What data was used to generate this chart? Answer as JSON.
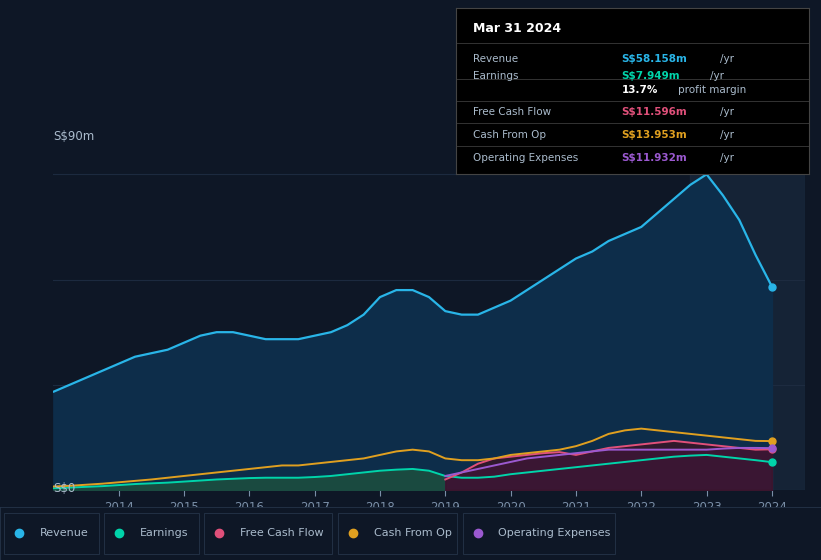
{
  "bg_color": "#0e1726",
  "plot_bg_color": "#0e1726",
  "ylabel": "S$90m",
  "y0label": "S$0",
  "years": [
    2013.0,
    2013.25,
    2013.5,
    2013.75,
    2014.0,
    2014.25,
    2014.5,
    2014.75,
    2015.0,
    2015.25,
    2015.5,
    2015.75,
    2016.0,
    2016.25,
    2016.5,
    2016.75,
    2017.0,
    2017.25,
    2017.5,
    2017.75,
    2018.0,
    2018.25,
    2018.5,
    2018.75,
    2019.0,
    2019.25,
    2019.5,
    2019.75,
    2020.0,
    2020.25,
    2020.5,
    2020.75,
    2021.0,
    2021.25,
    2021.5,
    2021.75,
    2022.0,
    2022.25,
    2022.5,
    2022.75,
    2023.0,
    2023.25,
    2023.5,
    2023.75,
    2024.0
  ],
  "revenue": [
    28,
    30,
    32,
    34,
    36,
    38,
    39,
    40,
    42,
    44,
    45,
    45,
    44,
    43,
    43,
    43,
    44,
    45,
    47,
    50,
    55,
    57,
    57,
    55,
    51,
    50,
    50,
    52,
    54,
    57,
    60,
    63,
    66,
    68,
    71,
    73,
    75,
    79,
    83,
    87,
    90,
    84,
    77,
    67,
    58
  ],
  "earnings": [
    0.5,
    0.7,
    0.9,
    1.1,
    1.4,
    1.7,
    1.9,
    2.1,
    2.4,
    2.7,
    3.0,
    3.2,
    3.4,
    3.5,
    3.5,
    3.5,
    3.7,
    4.0,
    4.5,
    5.0,
    5.5,
    5.8,
    6.0,
    5.5,
    4.0,
    3.5,
    3.5,
    3.8,
    4.5,
    5.0,
    5.5,
    6.0,
    6.5,
    7.0,
    7.5,
    8.0,
    8.5,
    9.0,
    9.5,
    9.8,
    10.0,
    9.5,
    9.0,
    8.5,
    7.949
  ],
  "free_cash_flow": [
    null,
    null,
    null,
    null,
    null,
    null,
    null,
    null,
    null,
    null,
    null,
    null,
    null,
    null,
    null,
    null,
    null,
    null,
    null,
    null,
    null,
    null,
    null,
    null,
    3.0,
    5.0,
    7.5,
    9.0,
    9.5,
    10.0,
    10.5,
    10.8,
    10.0,
    11.0,
    12.0,
    12.5,
    13.0,
    13.5,
    14.0,
    13.5,
    13.0,
    12.5,
    12.0,
    11.5,
    11.596
  ],
  "cash_from_op": [
    1.0,
    1.2,
    1.5,
    1.8,
    2.2,
    2.6,
    3.0,
    3.5,
    4.0,
    4.5,
    5.0,
    5.5,
    6.0,
    6.5,
    7.0,
    7.0,
    7.5,
    8.0,
    8.5,
    9.0,
    10.0,
    11.0,
    11.5,
    11.0,
    9.0,
    8.5,
    8.5,
    9.0,
    10.0,
    10.5,
    11.0,
    11.5,
    12.5,
    14.0,
    16.0,
    17.0,
    17.5,
    17.0,
    16.5,
    16.0,
    15.5,
    15.0,
    14.5,
    14.0,
    13.953
  ],
  "operating_expenses": [
    null,
    null,
    null,
    null,
    null,
    null,
    null,
    null,
    null,
    null,
    null,
    null,
    null,
    null,
    null,
    null,
    null,
    null,
    null,
    null,
    null,
    null,
    null,
    null,
    4.0,
    5.0,
    6.0,
    7.0,
    8.0,
    9.0,
    9.5,
    10.0,
    10.5,
    11.0,
    11.5,
    11.5,
    11.5,
    11.5,
    11.5,
    11.5,
    11.5,
    11.8,
    12.0,
    12.0,
    11.932
  ],
  "revenue_color": "#29b5e8",
  "revenue_fill": "#0d2d4a",
  "earnings_color": "#00d4aa",
  "earnings_fill": "#1a4a40",
  "free_cash_flow_color": "#e0507a",
  "operating_expenses_color": "#9b59d0",
  "operating_expenses_fill": "#3d1a6e",
  "cash_from_op_color": "#e0a020",
  "grid_color": "#1e2d42",
  "tick_color": "#7a8fa8",
  "text_color": "#aabbcc",
  "xlim": [
    2013.0,
    2024.5
  ],
  "ylim": [
    0,
    95
  ],
  "xticks": [
    2014,
    2015,
    2016,
    2017,
    2018,
    2019,
    2020,
    2021,
    2022,
    2023,
    2024
  ],
  "legend_items": [
    {
      "label": "Revenue",
      "color": "#29b5e8"
    },
    {
      "label": "Earnings",
      "color": "#00d4aa"
    },
    {
      "label": "Free Cash Flow",
      "color": "#e0507a"
    },
    {
      "label": "Cash From Op",
      "color": "#e0a020"
    },
    {
      "label": "Operating Expenses",
      "color": "#9b59d0"
    }
  ],
  "info_box": {
    "date": "Mar 31 2024",
    "rows": [
      {
        "label": "Revenue",
        "value": "S$58.158m",
        "unit": "/yr",
        "color": "#29b5e8"
      },
      {
        "label": "Earnings",
        "value": "S$7.949m",
        "unit": "/yr",
        "color": "#00d4aa"
      },
      {
        "label": "",
        "value": "13.7%",
        "unit": "profit margin",
        "color": "#ffffff"
      },
      {
        "label": "Free Cash Flow",
        "value": "S$11.596m",
        "unit": "/yr",
        "color": "#e0507a"
      },
      {
        "label": "Cash From Op",
        "value": "S$13.953m",
        "unit": "/yr",
        "color": "#e0a020"
      },
      {
        "label": "Operating Expenses",
        "value": "S$11.932m",
        "unit": "/yr",
        "color": "#9b59d0"
      }
    ]
  }
}
